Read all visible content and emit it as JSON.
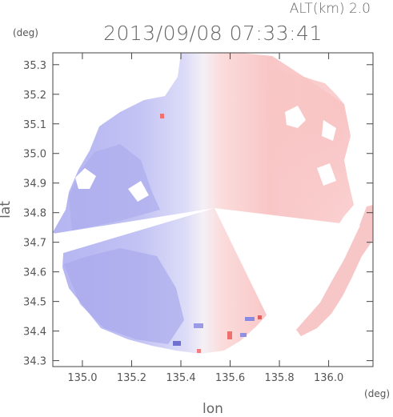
{
  "chart_data": {
    "type": "heatmap",
    "title": "2013/09/08 07:33:41",
    "altitude_label": "ALT(km) 2.0",
    "xlabel": "lon",
    "ylabel": "lat",
    "x_unit": "(deg)",
    "y_unit": "(deg)",
    "xlim": [
      134.88,
      136.18
    ],
    "ylim": [
      34.28,
      35.34
    ],
    "x_ticks": [
      "135.0",
      "135.2",
      "135.4",
      "135.6",
      "135.8",
      "136.0"
    ],
    "y_ticks": [
      "34.3",
      "34.4",
      "34.5",
      "34.6",
      "34.7",
      "34.8",
      "34.9",
      "35.0",
      "35.1",
      "35.2",
      "35.3"
    ],
    "radar_center": {
      "lon": 135.52,
      "lat": 34.8
    },
    "colors": {
      "approaching": "#a8a8f0",
      "receding": "#f8a8a8",
      "neutral": "#f6f6fb",
      "frame": "#444444"
    }
  }
}
